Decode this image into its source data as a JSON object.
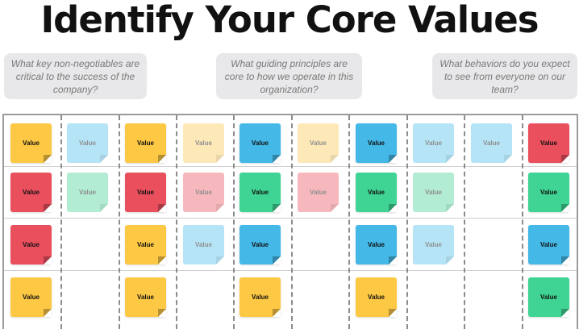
{
  "title": "Identify Your Core Values",
  "prompts": [
    "What key non-negotiables are critical to the success of the company?",
    "What guiding principles are core to how we operate in this organization?",
    "What behaviors do you expect to see from everyone on our team?"
  ],
  "colors": {
    "yellow": "#fdc844",
    "red": "#ea4f5e",
    "blue": "#44b8e6",
    "green": "#3fd494",
    "yellow_faded": "#fde8b8",
    "red_faded": "#f7b8bd",
    "blue_faded": "#b5e4f6",
    "green_faded": "#b1ecd3"
  },
  "note_label": "Value",
  "board": {
    "columns": [
      {
        "notes": [
          {
            "row": 0,
            "color": "yellow"
          },
          {
            "row": 1,
            "color": "red"
          },
          {
            "row": 2,
            "color": "red"
          },
          {
            "row": 3,
            "color": "yellow"
          }
        ]
      },
      {
        "notes": [
          {
            "row": 0,
            "color": "blue_faded"
          },
          {
            "row": 1,
            "color": "green_faded"
          }
        ]
      },
      {
        "notes": [
          {
            "row": 0,
            "color": "yellow"
          },
          {
            "row": 1,
            "color": "red"
          },
          {
            "row": 2,
            "color": "yellow"
          },
          {
            "row": 3,
            "color": "yellow"
          }
        ]
      },
      {
        "notes": [
          {
            "row": 0,
            "color": "yellow_faded"
          },
          {
            "row": 1,
            "color": "red_faded"
          },
          {
            "row": 2,
            "color": "blue_faded"
          }
        ]
      },
      {
        "notes": [
          {
            "row": 0,
            "color": "blue"
          },
          {
            "row": 1,
            "color": "green"
          },
          {
            "row": 2,
            "color": "blue"
          },
          {
            "row": 3,
            "color": "yellow"
          }
        ]
      },
      {
        "notes": [
          {
            "row": 0,
            "color": "yellow_faded"
          },
          {
            "row": 1,
            "color": "red_faded"
          }
        ]
      },
      {
        "notes": [
          {
            "row": 0,
            "color": "blue"
          },
          {
            "row": 1,
            "color": "green"
          },
          {
            "row": 2,
            "color": "blue"
          },
          {
            "row": 3,
            "color": "yellow"
          }
        ]
      },
      {
        "notes": [
          {
            "row": 0,
            "color": "blue_faded"
          },
          {
            "row": 1,
            "color": "green_faded"
          },
          {
            "row": 2,
            "color": "blue_faded"
          }
        ]
      },
      {
        "notes": [
          {
            "row": 0,
            "color": "blue_faded"
          }
        ]
      },
      {
        "notes": [
          {
            "row": 0,
            "color": "red"
          },
          {
            "row": 1,
            "color": "green"
          },
          {
            "row": 2,
            "color": "blue"
          },
          {
            "row": 3,
            "color": "green"
          }
        ]
      }
    ]
  }
}
